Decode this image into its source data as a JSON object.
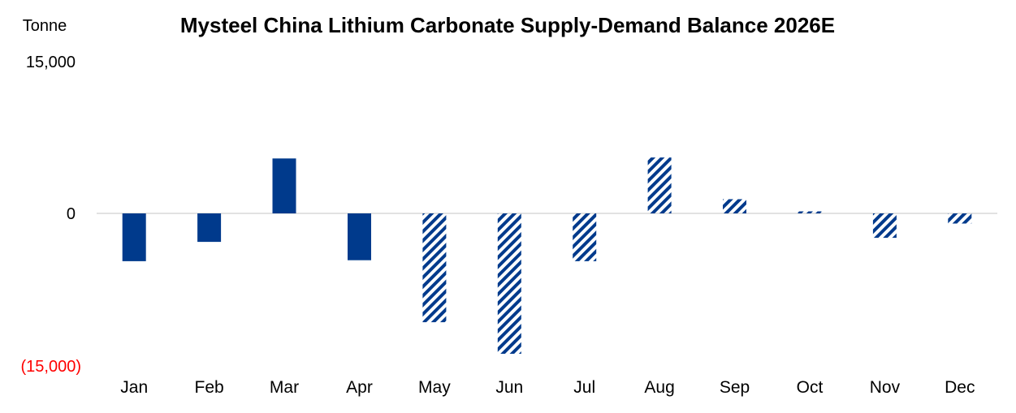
{
  "chart_data": {
    "type": "bar",
    "title": "Mysteel China Lithium Carbonate Supply-Demand Balance 2026E",
    "unit_label": "Tonne",
    "ylim": [
      -15000,
      15000
    ],
    "y_tick_labels": {
      "top": "15,000",
      "zero": "0",
      "bottom": "(15,000)"
    },
    "categories": [
      "Jan",
      "Feb",
      "Mar",
      "Apr",
      "May",
      "Jun",
      "Jul",
      "Aug",
      "Sep",
      "Oct",
      "Nov",
      "Dec"
    ],
    "values": [
      -4700,
      -2800,
      5400,
      -4600,
      -10700,
      -13800,
      -4700,
      5500,
      1400,
      200,
      -2400,
      -1000
    ],
    "bar_styles": [
      "solid",
      "solid",
      "solid",
      "solid",
      "hatched",
      "hatched",
      "hatched",
      "hatched",
      "hatched",
      "hatched",
      "hatched",
      "hatched"
    ],
    "colors": {
      "bar": "#003A8C",
      "axis": "#D9D9D9",
      "negative_label": "#FF0000",
      "text": "#000000"
    },
    "grid": false,
    "legend": "none"
  }
}
